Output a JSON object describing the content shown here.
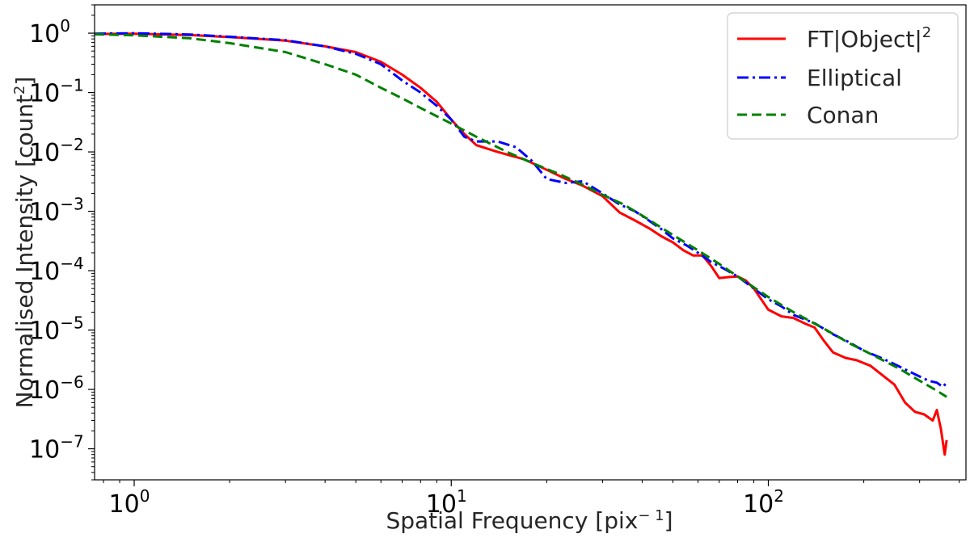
{
  "chart_data": {
    "type": "line",
    "title": "",
    "xlabel": "Spatial Frequency [pix",
    "xlabel_sup": "− 1",
    "xlabel_close": "]",
    "ylabel": "Normalised Intensity [count",
    "ylabel_sup": "2",
    "ylabel_close": "]",
    "xscale": "log",
    "yscale": "log",
    "xlim": [
      0.75,
      420
    ],
    "ylim": [
      3e-08,
      3
    ],
    "grid": false,
    "legend_position": "top-right",
    "x_ticks": [
      {
        "value": 1,
        "base": "10",
        "exp": "0"
      },
      {
        "value": 10,
        "base": "10",
        "exp": "1"
      },
      {
        "value": 100,
        "base": "10",
        "exp": "2"
      }
    ],
    "y_ticks": [
      {
        "value": 1,
        "base": "10",
        "exp": "0"
      },
      {
        "value": 0.1,
        "base": "10",
        "exp": "−1"
      },
      {
        "value": 0.01,
        "base": "10",
        "exp": "−2"
      },
      {
        "value": 0.001,
        "base": "10",
        "exp": "−3"
      },
      {
        "value": 0.0001,
        "base": "10",
        "exp": "−4"
      },
      {
        "value": 1e-05,
        "base": "10",
        "exp": "−5"
      },
      {
        "value": 1e-06,
        "base": "10",
        "exp": "−6"
      },
      {
        "value": 1e-07,
        "base": "10",
        "exp": "−7"
      }
    ],
    "series": [
      {
        "name": "FT|Object|",
        "name_sup": "2",
        "color": "#ff0000",
        "dash": "solid",
        "points": [
          [
            0.75,
            0.97
          ],
          [
            1,
            0.98
          ],
          [
            1.5,
            0.93
          ],
          [
            2,
            0.86
          ],
          [
            3,
            0.75
          ],
          [
            4,
            0.6
          ],
          [
            5,
            0.48
          ],
          [
            6,
            0.33
          ],
          [
            7,
            0.2
          ],
          [
            8,
            0.12
          ],
          [
            9,
            0.07
          ],
          [
            10,
            0.035
          ],
          [
            11,
            0.02
          ],
          [
            12,
            0.013
          ],
          [
            14,
            0.01
          ],
          [
            17,
            0.0075
          ],
          [
            20,
            0.005
          ],
          [
            23,
            0.0035
          ],
          [
            26,
            0.0027
          ],
          [
            30,
            0.0018
          ],
          [
            34,
            0.00095
          ],
          [
            38,
            0.0007
          ],
          [
            42,
            0.00052
          ],
          [
            46,
            0.00038
          ],
          [
            50,
            0.0003
          ],
          [
            54,
            0.00022
          ],
          [
            58,
            0.00018
          ],
          [
            62,
            0.00018
          ],
          [
            66,
            0.00012
          ],
          [
            70,
            7.5e-05
          ],
          [
            75,
            7.8e-05
          ],
          [
            80,
            8e-05
          ],
          [
            85,
            6.8e-05
          ],
          [
            90,
            5e-05
          ],
          [
            100,
            2.2e-05
          ],
          [
            110,
            1.7e-05
          ],
          [
            120,
            1.6e-05
          ],
          [
            130,
            1.3e-05
          ],
          [
            140,
            1.1e-05
          ],
          [
            150,
            6.5e-06
          ],
          [
            160,
            4.2e-06
          ],
          [
            175,
            3.4e-06
          ],
          [
            190,
            3.1e-06
          ],
          [
            210,
            2.5e-06
          ],
          [
            230,
            1.7e-06
          ],
          [
            250,
            1.2e-06
          ],
          [
            270,
            6e-07
          ],
          [
            290,
            4.2e-07
          ],
          [
            310,
            3.8e-07
          ],
          [
            330,
            3e-07
          ],
          [
            340,
            4.5e-07
          ],
          [
            350,
            2.2e-07
          ],
          [
            360,
            8e-08
          ],
          [
            365,
            1.4e-07
          ]
        ]
      },
      {
        "name": "Elliptical",
        "color": "#0000ff",
        "dash": "dashdot",
        "points": [
          [
            0.75,
            0.98
          ],
          [
            1,
            1.0
          ],
          [
            1.5,
            0.95
          ],
          [
            2,
            0.87
          ],
          [
            3,
            0.76
          ],
          [
            4,
            0.6
          ],
          [
            5,
            0.45
          ],
          [
            6,
            0.3
          ],
          [
            7,
            0.16
          ],
          [
            8,
            0.1
          ],
          [
            9,
            0.06
          ],
          [
            10,
            0.035
          ],
          [
            11,
            0.018
          ],
          [
            12,
            0.015
          ],
          [
            14,
            0.015
          ],
          [
            16,
            0.012
          ],
          [
            18,
            0.007
          ],
          [
            20,
            0.0035
          ],
          [
            23,
            0.003
          ],
          [
            26,
            0.0032
          ],
          [
            30,
            0.002
          ],
          [
            34,
            0.0013
          ],
          [
            38,
            0.001
          ],
          [
            42,
            0.0007
          ],
          [
            46,
            0.0005
          ],
          [
            50,
            0.00035
          ],
          [
            55,
            0.00027
          ],
          [
            60,
            0.0002
          ],
          [
            66,
            0.00014
          ],
          [
            72,
            0.00011
          ],
          [
            80,
            8e-05
          ],
          [
            90,
            5e-05
          ],
          [
            100,
            3.3e-05
          ],
          [
            110,
            2.5e-05
          ],
          [
            120,
            1.8e-05
          ],
          [
            140,
            1.3e-05
          ],
          [
            160,
            8.5e-06
          ],
          [
            180,
            6.2e-06
          ],
          [
            200,
            4.5e-06
          ],
          [
            230,
            3.3e-06
          ],
          [
            260,
            2.4e-06
          ],
          [
            290,
            1.8e-06
          ],
          [
            320,
            1.4e-06
          ],
          [
            340,
            1.3e-06
          ],
          [
            355,
            1.1e-06
          ],
          [
            365,
            1.3e-06
          ]
        ]
      },
      {
        "name": "Conan",
        "color": "#008000",
        "dash": "dashed",
        "points": [
          [
            0.75,
            0.96
          ],
          [
            1,
            0.92
          ],
          [
            1.5,
            0.82
          ],
          [
            2,
            0.68
          ],
          [
            3,
            0.48
          ],
          [
            4,
            0.3
          ],
          [
            5,
            0.2
          ],
          [
            6,
            0.12
          ],
          [
            7,
            0.08
          ],
          [
            8,
            0.055
          ],
          [
            10,
            0.03
          ],
          [
            12,
            0.018
          ],
          [
            15,
            0.01
          ],
          [
            18,
            0.0065
          ],
          [
            22,
            0.0042
          ],
          [
            26,
            0.0028
          ],
          [
            30,
            0.0019
          ],
          [
            35,
            0.0013
          ],
          [
            40,
            0.00085
          ],
          [
            50,
            0.0004
          ],
          [
            60,
            0.00022
          ],
          [
            70,
            0.00013
          ],
          [
            80,
            8e-05
          ],
          [
            100,
            3.6e-05
          ],
          [
            120,
            2e-05
          ],
          [
            150,
            1.05e-05
          ],
          [
            180,
            6e-06
          ],
          [
            220,
            3.5e-06
          ],
          [
            260,
            2.2e-06
          ],
          [
            300,
            1.4e-06
          ],
          [
            340,
            9.5e-07
          ],
          [
            365,
            7.5e-07
          ]
        ]
      }
    ]
  }
}
